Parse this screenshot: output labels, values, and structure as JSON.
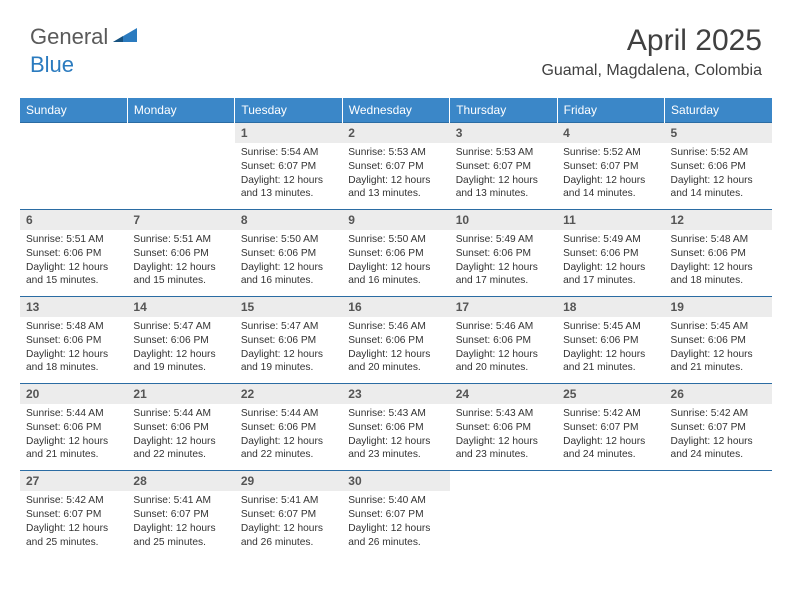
{
  "logo": {
    "general": "General",
    "blue": "Blue"
  },
  "title": "April 2025",
  "location": "Guamal, Magdalena, Colombia",
  "colors": {
    "header_bg": "#3b87c8",
    "header_text": "#ffffff",
    "daynum_bg": "#ececec",
    "daynum_text": "#555555",
    "border": "#2b6ca3",
    "logo_blue": "#2b7bbf",
    "logo_gray": "#5a5a5a"
  },
  "weekdays": [
    "Sunday",
    "Monday",
    "Tuesday",
    "Wednesday",
    "Thursday",
    "Friday",
    "Saturday"
  ],
  "weeks": [
    {
      "nums": [
        "",
        "",
        "1",
        "2",
        "3",
        "4",
        "5"
      ],
      "cells": [
        {
          "empty": true
        },
        {
          "empty": true
        },
        {
          "sunrise": "Sunrise: 5:54 AM",
          "sunset": "Sunset: 6:07 PM",
          "day1": "Daylight: 12 hours",
          "day2": "and 13 minutes."
        },
        {
          "sunrise": "Sunrise: 5:53 AM",
          "sunset": "Sunset: 6:07 PM",
          "day1": "Daylight: 12 hours",
          "day2": "and 13 minutes."
        },
        {
          "sunrise": "Sunrise: 5:53 AM",
          "sunset": "Sunset: 6:07 PM",
          "day1": "Daylight: 12 hours",
          "day2": "and 13 minutes."
        },
        {
          "sunrise": "Sunrise: 5:52 AM",
          "sunset": "Sunset: 6:07 PM",
          "day1": "Daylight: 12 hours",
          "day2": "and 14 minutes."
        },
        {
          "sunrise": "Sunrise: 5:52 AM",
          "sunset": "Sunset: 6:06 PM",
          "day1": "Daylight: 12 hours",
          "day2": "and 14 minutes."
        }
      ]
    },
    {
      "nums": [
        "6",
        "7",
        "8",
        "9",
        "10",
        "11",
        "12"
      ],
      "cells": [
        {
          "sunrise": "Sunrise: 5:51 AM",
          "sunset": "Sunset: 6:06 PM",
          "day1": "Daylight: 12 hours",
          "day2": "and 15 minutes."
        },
        {
          "sunrise": "Sunrise: 5:51 AM",
          "sunset": "Sunset: 6:06 PM",
          "day1": "Daylight: 12 hours",
          "day2": "and 15 minutes."
        },
        {
          "sunrise": "Sunrise: 5:50 AM",
          "sunset": "Sunset: 6:06 PM",
          "day1": "Daylight: 12 hours",
          "day2": "and 16 minutes."
        },
        {
          "sunrise": "Sunrise: 5:50 AM",
          "sunset": "Sunset: 6:06 PM",
          "day1": "Daylight: 12 hours",
          "day2": "and 16 minutes."
        },
        {
          "sunrise": "Sunrise: 5:49 AM",
          "sunset": "Sunset: 6:06 PM",
          "day1": "Daylight: 12 hours",
          "day2": "and 17 minutes."
        },
        {
          "sunrise": "Sunrise: 5:49 AM",
          "sunset": "Sunset: 6:06 PM",
          "day1": "Daylight: 12 hours",
          "day2": "and 17 minutes."
        },
        {
          "sunrise": "Sunrise: 5:48 AM",
          "sunset": "Sunset: 6:06 PM",
          "day1": "Daylight: 12 hours",
          "day2": "and 18 minutes."
        }
      ]
    },
    {
      "nums": [
        "13",
        "14",
        "15",
        "16",
        "17",
        "18",
        "19"
      ],
      "cells": [
        {
          "sunrise": "Sunrise: 5:48 AM",
          "sunset": "Sunset: 6:06 PM",
          "day1": "Daylight: 12 hours",
          "day2": "and 18 minutes."
        },
        {
          "sunrise": "Sunrise: 5:47 AM",
          "sunset": "Sunset: 6:06 PM",
          "day1": "Daylight: 12 hours",
          "day2": "and 19 minutes."
        },
        {
          "sunrise": "Sunrise: 5:47 AM",
          "sunset": "Sunset: 6:06 PM",
          "day1": "Daylight: 12 hours",
          "day2": "and 19 minutes."
        },
        {
          "sunrise": "Sunrise: 5:46 AM",
          "sunset": "Sunset: 6:06 PM",
          "day1": "Daylight: 12 hours",
          "day2": "and 20 minutes."
        },
        {
          "sunrise": "Sunrise: 5:46 AM",
          "sunset": "Sunset: 6:06 PM",
          "day1": "Daylight: 12 hours",
          "day2": "and 20 minutes."
        },
        {
          "sunrise": "Sunrise: 5:45 AM",
          "sunset": "Sunset: 6:06 PM",
          "day1": "Daylight: 12 hours",
          "day2": "and 21 minutes."
        },
        {
          "sunrise": "Sunrise: 5:45 AM",
          "sunset": "Sunset: 6:06 PM",
          "day1": "Daylight: 12 hours",
          "day2": "and 21 minutes."
        }
      ]
    },
    {
      "nums": [
        "20",
        "21",
        "22",
        "23",
        "24",
        "25",
        "26"
      ],
      "cells": [
        {
          "sunrise": "Sunrise: 5:44 AM",
          "sunset": "Sunset: 6:06 PM",
          "day1": "Daylight: 12 hours",
          "day2": "and 21 minutes."
        },
        {
          "sunrise": "Sunrise: 5:44 AM",
          "sunset": "Sunset: 6:06 PM",
          "day1": "Daylight: 12 hours",
          "day2": "and 22 minutes."
        },
        {
          "sunrise": "Sunrise: 5:44 AM",
          "sunset": "Sunset: 6:06 PM",
          "day1": "Daylight: 12 hours",
          "day2": "and 22 minutes."
        },
        {
          "sunrise": "Sunrise: 5:43 AM",
          "sunset": "Sunset: 6:06 PM",
          "day1": "Daylight: 12 hours",
          "day2": "and 23 minutes."
        },
        {
          "sunrise": "Sunrise: 5:43 AM",
          "sunset": "Sunset: 6:06 PM",
          "day1": "Daylight: 12 hours",
          "day2": "and 23 minutes."
        },
        {
          "sunrise": "Sunrise: 5:42 AM",
          "sunset": "Sunset: 6:07 PM",
          "day1": "Daylight: 12 hours",
          "day2": "and 24 minutes."
        },
        {
          "sunrise": "Sunrise: 5:42 AM",
          "sunset": "Sunset: 6:07 PM",
          "day1": "Daylight: 12 hours",
          "day2": "and 24 minutes."
        }
      ]
    },
    {
      "nums": [
        "27",
        "28",
        "29",
        "30",
        "",
        "",
        ""
      ],
      "cells": [
        {
          "sunrise": "Sunrise: 5:42 AM",
          "sunset": "Sunset: 6:07 PM",
          "day1": "Daylight: 12 hours",
          "day2": "and 25 minutes."
        },
        {
          "sunrise": "Sunrise: 5:41 AM",
          "sunset": "Sunset: 6:07 PM",
          "day1": "Daylight: 12 hours",
          "day2": "and 25 minutes."
        },
        {
          "sunrise": "Sunrise: 5:41 AM",
          "sunset": "Sunset: 6:07 PM",
          "day1": "Daylight: 12 hours",
          "day2": "and 26 minutes."
        },
        {
          "sunrise": "Sunrise: 5:40 AM",
          "sunset": "Sunset: 6:07 PM",
          "day1": "Daylight: 12 hours",
          "day2": "and 26 minutes."
        },
        {
          "empty": true
        },
        {
          "empty": true
        },
        {
          "empty": true
        }
      ]
    }
  ]
}
